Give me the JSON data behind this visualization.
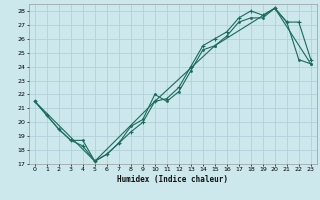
{
  "xlabel": "Humidex (Indice chaleur)",
  "bg_color": "#cce8ec",
  "grid_color": "#aacdd4",
  "line_color": "#1a6b5a",
  "line1_x": [
    0,
    1,
    2,
    3,
    4,
    5,
    6,
    7,
    8,
    9,
    10,
    11,
    12,
    13,
    14,
    15,
    16,
    17,
    18,
    19,
    20,
    21,
    22,
    23
  ],
  "line1_y": [
    21.5,
    20.5,
    19.5,
    18.7,
    18.7,
    17.2,
    17.7,
    18.5,
    19.7,
    20.2,
    22.0,
    21.5,
    22.2,
    23.7,
    25.2,
    25.5,
    26.2,
    27.2,
    27.5,
    27.5,
    28.2,
    27.2,
    24.5,
    24.2
  ],
  "line2_x": [
    0,
    1,
    2,
    3,
    4,
    5,
    6,
    7,
    8,
    9,
    10,
    11,
    12,
    13,
    14,
    15,
    16,
    17,
    18,
    19,
    20,
    21,
    22,
    23
  ],
  "line2_y": [
    21.5,
    20.5,
    19.5,
    18.7,
    18.3,
    17.2,
    17.7,
    18.5,
    19.3,
    20.0,
    21.5,
    21.7,
    22.5,
    24.0,
    25.5,
    26.0,
    26.5,
    27.5,
    28.0,
    27.7,
    28.2,
    27.2,
    27.2,
    24.5
  ],
  "line3_x": [
    0,
    5,
    10,
    15,
    20,
    23
  ],
  "line3_y": [
    21.5,
    17.2,
    21.5,
    25.5,
    28.2,
    24.2
  ],
  "ylim": [
    17,
    28.5
  ],
  "xlim": [
    -0.5,
    23.5
  ],
  "yticks": [
    17,
    18,
    19,
    20,
    21,
    22,
    23,
    24,
    25,
    26,
    27,
    28
  ],
  "xticks": [
    0,
    1,
    2,
    3,
    4,
    5,
    6,
    7,
    8,
    9,
    10,
    11,
    12,
    13,
    14,
    15,
    16,
    17,
    18,
    19,
    20,
    21,
    22,
    23
  ]
}
